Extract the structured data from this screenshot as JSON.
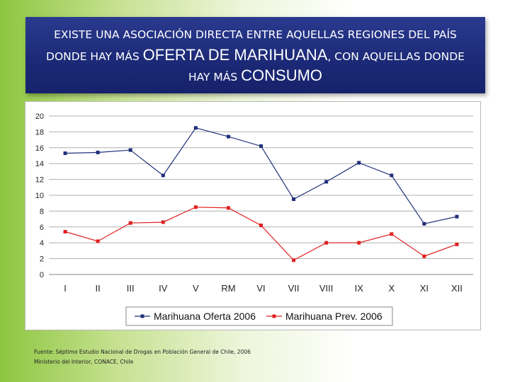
{
  "title": {
    "line1": "EXISTE UNA ASOCIACIÓN DIRECTA ENTRE AQUELLAS REGIONES DEL PAÍS",
    "line2_a": "DONDE HAY MÁS",
    "line2_b": "OFERTA DE MARIHUANA",
    "line2_c": ", CON AQUELLAS DONDE",
    "line3_a": "HAY MÁS",
    "line3_b": "CONSUMO"
  },
  "footer": {
    "line1": "Fuente: Séptimo Estudio Nacional de Drogas en Población General de Chile, 2006",
    "line2": "Ministerio del Interior, CONACE, Chile"
  },
  "colors": {
    "series1": "#1f2f7a",
    "series2": "#e02020",
    "grid": "#b0b0b0"
  },
  "chart_data": {
    "type": "line",
    "title": "",
    "xlabel": "",
    "ylabel": "",
    "ylim": [
      0,
      20
    ],
    "yticks": [
      0,
      2,
      4,
      6,
      8,
      10,
      12,
      14,
      16,
      18,
      20
    ],
    "grid": true,
    "legend_position": "bottom",
    "categories": [
      "I",
      "II",
      "III",
      "IV",
      "V",
      "RM",
      "VI",
      "VII",
      "VIII",
      "IX",
      "X",
      "XI",
      "XII"
    ],
    "series": [
      {
        "name": "Marihuana Oferta 2006",
        "values": [
          15.3,
          15.4,
          15.7,
          12.5,
          18.5,
          17.4,
          16.2,
          9.5,
          11.7,
          14.1,
          12.5,
          6.4,
          7.3
        ]
      },
      {
        "name": "Marihuana Prev. 2006",
        "values": [
          5.4,
          4.2,
          6.5,
          6.6,
          8.5,
          8.4,
          6.2,
          1.8,
          4.0,
          4.0,
          5.1,
          2.3,
          3.8
        ]
      }
    ]
  }
}
